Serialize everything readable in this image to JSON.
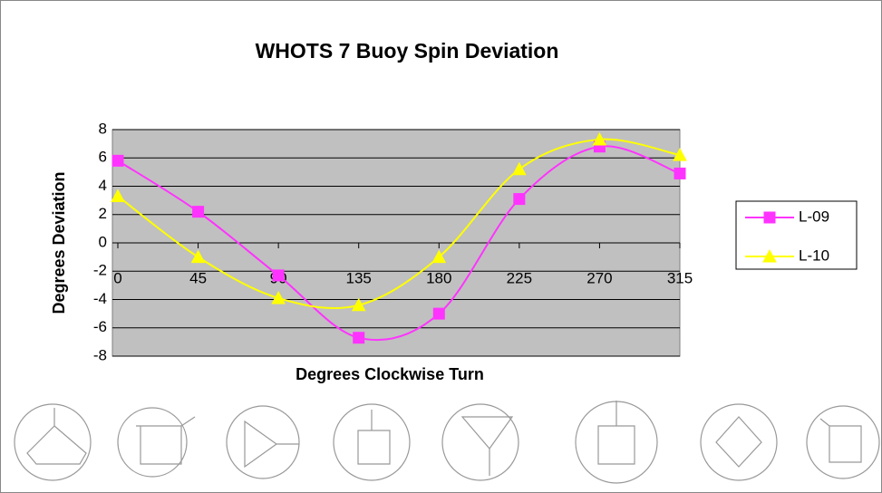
{
  "chart_data": {
    "type": "line",
    "title": "WHOTS 7 Buoy Spin Deviation",
    "x_label": "Degrees Clockwise Turn",
    "y_label": "Degrees Deviation",
    "x": [
      0,
      45,
      90,
      135,
      180,
      225,
      270,
      315
    ],
    "series": [
      {
        "name": "L-09",
        "color": "#ff33ff",
        "marker": "square",
        "values": [
          5.8,
          2.2,
          -2.3,
          -6.7,
          -5.0,
          3.1,
          6.8,
          4.9
        ]
      },
      {
        "name": "L-10",
        "color": "#ffff00",
        "marker": "triangle",
        "values": [
          3.3,
          -1.0,
          -3.9,
          -4.4,
          -1.0,
          5.2,
          7.3,
          6.2
        ]
      }
    ],
    "xlim": [
      0,
      315
    ],
    "xticks": [
      0,
      45,
      90,
      135,
      180,
      225,
      270,
      315
    ],
    "ylim": [
      -8,
      8
    ],
    "yticks": [
      -8,
      -6,
      -4,
      -2,
      0,
      2,
      4,
      6,
      8
    ],
    "grid": true,
    "legend": "right",
    "smooth": true
  }
}
